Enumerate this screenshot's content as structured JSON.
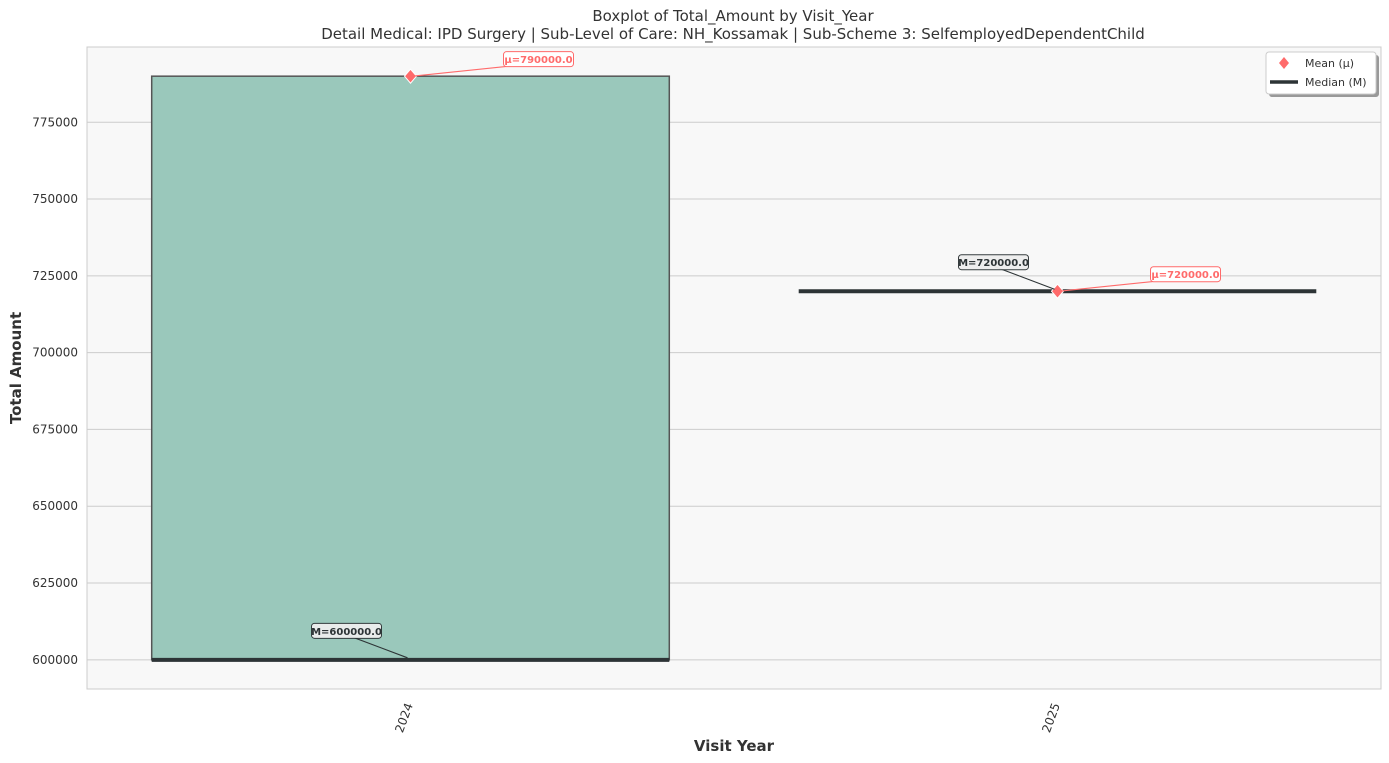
{
  "chart_data": {
    "type": "box",
    "title": "Boxplot of Total_Amount by Visit_Year",
    "subtitle": "Detail Medical: IPD Surgery | Sub-Level of Care: NH_Kossamak | Sub-Scheme 3: SelfemployedDependentChild",
    "xlabel": "Visit Year",
    "ylabel": "Total Amount",
    "categories": [
      "2024",
      "2025"
    ],
    "ylim": [
      590500,
      799500
    ],
    "yticks": [
      600000,
      625000,
      650000,
      675000,
      700000,
      725000,
      750000,
      775000
    ],
    "ytick_labels": [
      "600000",
      "625000",
      "650000",
      "675000",
      "700000",
      "725000",
      "750000",
      "775000"
    ],
    "grid": true,
    "legend_position": "top-right",
    "legend": [
      {
        "label": "Mean (μ)",
        "marker": "diamond",
        "color": "#ff6b6b"
      },
      {
        "label": "Median (M)",
        "marker": "line",
        "color": "#2d3436"
      }
    ],
    "boxes": [
      {
        "category": "2024",
        "q1": 600000,
        "median": 600000,
        "q3": 790000,
        "whisker_low": 600000,
        "whisker_high": 790000,
        "mean": 790000
      },
      {
        "category": "2025",
        "q1": 720000,
        "median": 720000,
        "q3": 720000,
        "whisker_low": 720000,
        "whisker_high": 720000,
        "mean": 720000
      }
    ],
    "annotations": [
      {
        "kind": "mean",
        "category": "2024",
        "text": "μ=790000.0"
      },
      {
        "kind": "median",
        "category": "2024",
        "text": "M=600000.0"
      },
      {
        "kind": "mean",
        "category": "2025",
        "text": "μ=720000.0"
      },
      {
        "kind": "median",
        "category": "2025",
        "text": "M=720000.0"
      }
    ],
    "colors": {
      "box_fill": "#9ac8bb",
      "box_edge": "#555555",
      "median": "#2d3436",
      "mean": "#ff6b6b",
      "plot_bg": "#f8f8f8",
      "grid": "#cccccc"
    }
  }
}
